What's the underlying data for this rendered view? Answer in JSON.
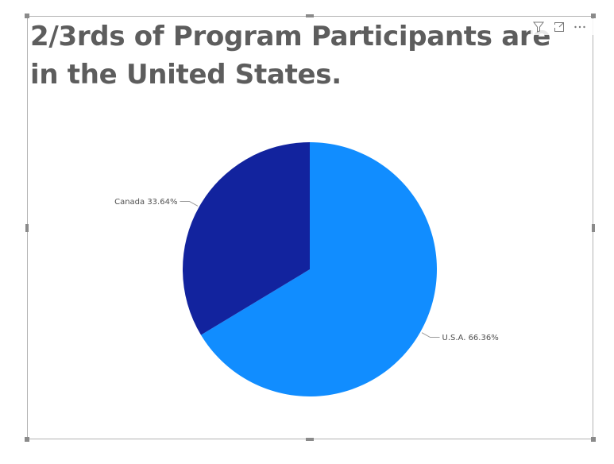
{
  "visual": {
    "title": "2/3rds of Program Participants are in the United States."
  },
  "header_icons": [
    {
      "name": "filter-icon",
      "icon": "filter"
    },
    {
      "name": "focus-mode-icon",
      "icon": "expand"
    },
    {
      "name": "more-options-icon",
      "icon": "ellipsis"
    }
  ],
  "chart_data": {
    "type": "pie",
    "title": "2/3rds of Program Participants are in the United States.",
    "slices": [
      {
        "label": "U.S.A.",
        "percent": 66.36,
        "display": "U.S.A. 66.36%",
        "color": "#118DFF"
      },
      {
        "label": "Canada",
        "percent": 33.64,
        "display": "Canada 33.64%",
        "color": "#12239E"
      }
    ],
    "start_angle": "12 o'clock",
    "direction": "clockwise"
  }
}
